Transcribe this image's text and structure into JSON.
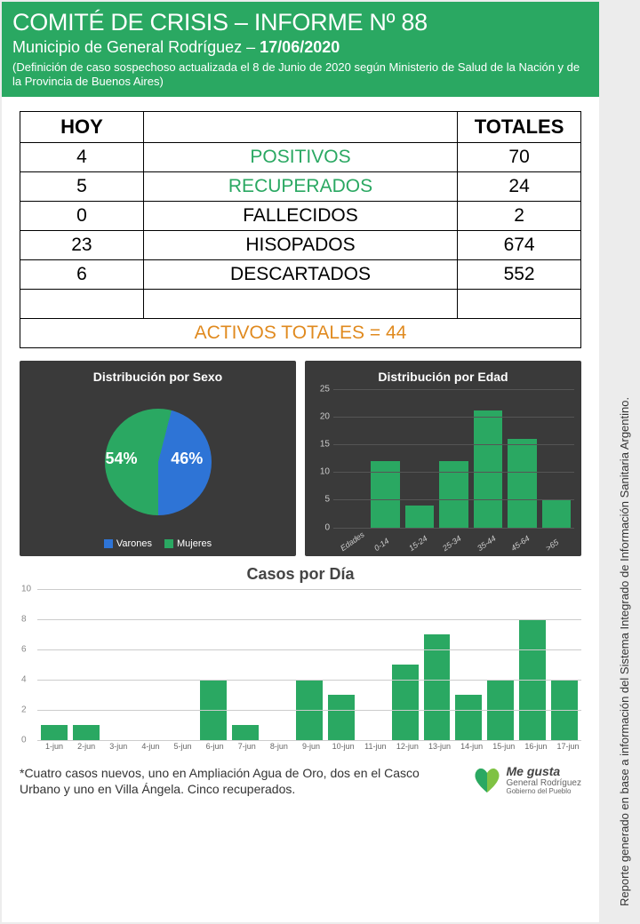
{
  "header": {
    "title": "COMITÉ DE CRISIS – INFORME Nº 88",
    "subtitle_prefix": "Municipio de General Rodríguez – ",
    "date": "17/06/2020",
    "note": "(Definición de caso sospechoso actualizada el 8 de Junio de 2020 según Ministerio de Salud de la Nación y de la Provincia de Buenos Aires)"
  },
  "table": {
    "col_today": "HOY",
    "col_totals": "TOTALES",
    "rows": [
      {
        "today": "4",
        "label": "POSITIVOS",
        "total": "70",
        "cls": "positivos"
      },
      {
        "today": "5",
        "label": "RECUPERADOS",
        "total": "24",
        "cls": "recuperados"
      },
      {
        "today": "0",
        "label": "FALLECIDOS",
        "total": "2",
        "cls": ""
      },
      {
        "today": "23",
        "label": "HISOPADOS",
        "total": "674",
        "cls": ""
      },
      {
        "today": "6",
        "label": "DESCARTADOS",
        "total": "552",
        "cls": ""
      }
    ],
    "activos_label": "ACTIVOS TOTALES = 44"
  },
  "pie": {
    "title": "Distribución por Sexo",
    "slices": [
      {
        "label": "Mujeres",
        "pct": 54,
        "color": "#2aa862"
      },
      {
        "label": "Varones",
        "pct": 46,
        "color": "#2e74d6"
      }
    ],
    "legend": [
      {
        "label": "Varones",
        "color": "#2e74d6"
      },
      {
        "label": "Mujeres",
        "color": "#2aa862"
      }
    ]
  },
  "age_bar": {
    "title": "Distribución por Edad",
    "ymax": 25,
    "ytick_step": 5,
    "bar_color": "#2aa862",
    "categories": [
      "Edades",
      "0-14",
      "15-24",
      "25-34",
      "35-44",
      "45-64",
      ">65"
    ],
    "values": [
      0,
      12,
      4,
      12,
      21,
      16,
      5
    ]
  },
  "daily": {
    "title": "Casos por Día",
    "ymax": 10,
    "ytick_step": 2,
    "bar_color": "#2aa862",
    "grid_color": "#ccc",
    "categories": [
      "1-jun",
      "2-jun",
      "3-jun",
      "4-jun",
      "5-jun",
      "6-jun",
      "7-jun",
      "8-jun",
      "9-jun",
      "10-jun",
      "11-jun",
      "12-jun",
      "13-jun",
      "14-jun",
      "15-jun",
      "16-jun",
      "17-jun"
    ],
    "values": [
      1,
      1,
      0,
      0,
      0,
      4,
      1,
      0,
      4,
      3,
      0,
      5,
      7,
      3,
      4,
      8,
      4
    ]
  },
  "footer": {
    "text": "*Cuatro casos nuevos, uno en Ampliación Agua de Oro, dos en el Casco Urbano y uno en Villa Ángela. Cinco recuperados.",
    "logo_line1": "Me gusta",
    "logo_line2": "General Rodríguez",
    "logo_line3": "Gobierno del Pueblo"
  },
  "side_note": "Reporte generado en base a información del Sistema Integrado de Información Sanitaria Argentino.",
  "colors": {
    "brand_green": "#2aa862",
    "accent_orange": "#e08a1f",
    "dark_card": "#3a3a3a",
    "page_bg": "#ffffff"
  }
}
